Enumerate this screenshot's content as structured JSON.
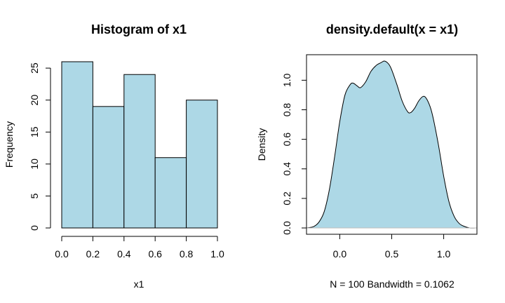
{
  "chart_data": [
    {
      "type": "bar",
      "title": "Histogram of x1",
      "xlabel": "x1",
      "ylabel": "Frequency",
      "xlim": [
        0,
        1
      ],
      "ylim": [
        0,
        26
      ],
      "bin_edges": [
        0.0,
        0.2,
        0.4,
        0.6,
        0.8,
        1.0
      ],
      "values": [
        26,
        19,
        24,
        11,
        20
      ],
      "x_ticks": [
        "0.0",
        "0.2",
        "0.4",
        "0.6",
        "0.8",
        "1.0"
      ],
      "y_ticks": [
        "0",
        "5",
        "10",
        "15",
        "20",
        "25"
      ],
      "fill_color": "#ADD8E6",
      "border_color": "#000000"
    },
    {
      "type": "area",
      "title": "density.default(x = x1)",
      "xlabel": "N = 100   Bandwidth = 0.1062",
      "ylabel": "Density",
      "xlim": [
        -0.32,
        1.32
      ],
      "ylim": [
        0,
        1.13
      ],
      "x_ticks": [
        "0.0",
        "0.5",
        "1.0"
      ],
      "y_ticks": [
        "0.0",
        "0.2",
        "0.4",
        "0.6",
        "0.8",
        "1.0"
      ],
      "fill_color": "#ADD8E6",
      "line_color": "#000000",
      "x": [
        -0.32,
        -0.25,
        -0.2,
        -0.15,
        -0.1,
        -0.05,
        0.0,
        0.05,
        0.1,
        0.13,
        0.17,
        0.2,
        0.25,
        0.3,
        0.35,
        0.4,
        0.43,
        0.47,
        0.5,
        0.55,
        0.6,
        0.65,
        0.68,
        0.72,
        0.76,
        0.8,
        0.83,
        0.87,
        0.9,
        0.95,
        1.0,
        1.05,
        1.1,
        1.15,
        1.2,
        1.25,
        1.32
      ],
      "y": [
        0.0,
        0.01,
        0.04,
        0.11,
        0.26,
        0.48,
        0.72,
        0.9,
        0.97,
        0.98,
        0.96,
        0.95,
        0.99,
        1.06,
        1.1,
        1.12,
        1.13,
        1.11,
        1.07,
        0.97,
        0.86,
        0.79,
        0.78,
        0.81,
        0.86,
        0.89,
        0.88,
        0.82,
        0.74,
        0.56,
        0.35,
        0.18,
        0.08,
        0.03,
        0.01,
        0.0,
        0.0
      ]
    }
  ]
}
